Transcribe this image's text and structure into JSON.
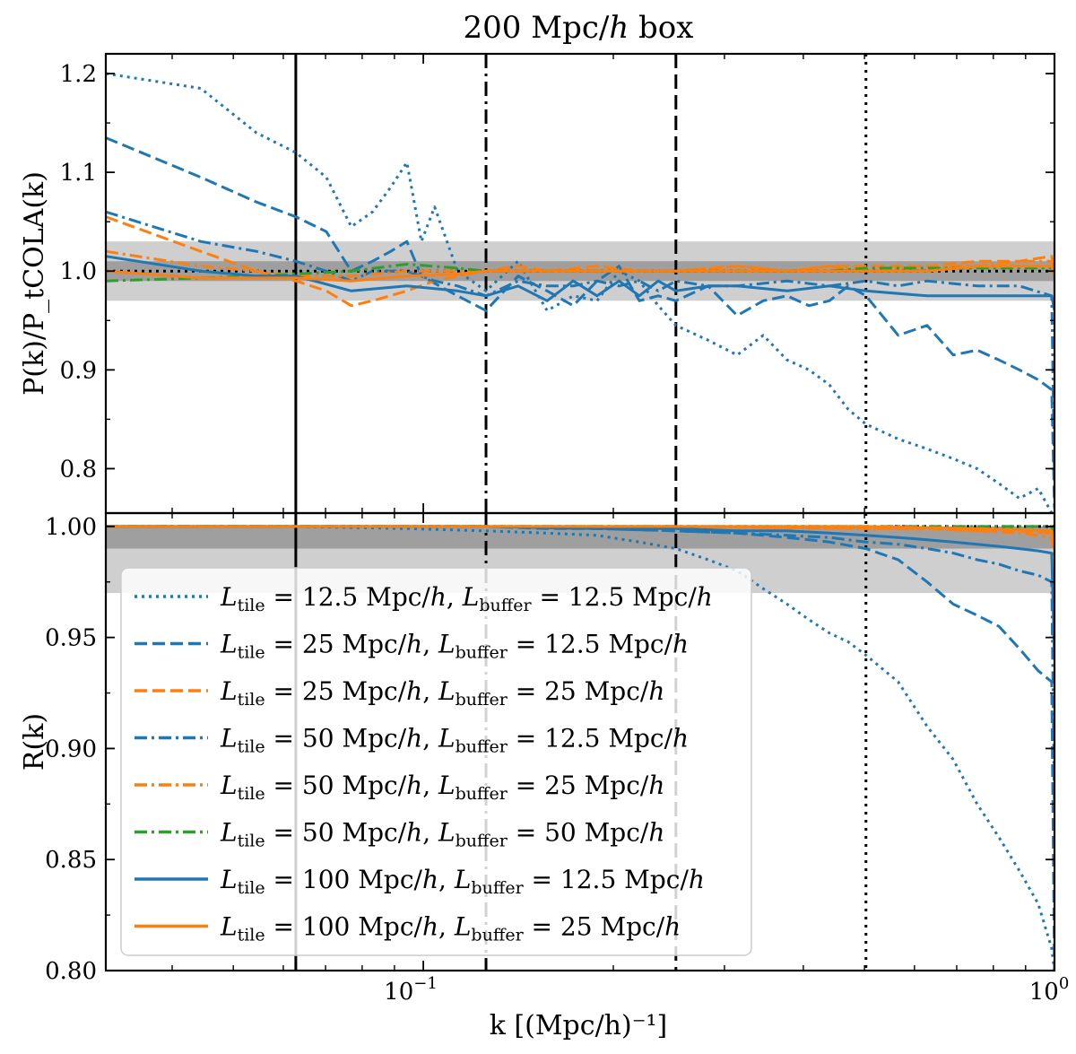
{
  "figure": {
    "title": "200 Mpc/h box",
    "xlabel": "k [(Mpc/h)⁻¹]",
    "top_ylabel": "P(k)/P_tCOLA(k)",
    "bottom_ylabel": "R(k)"
  },
  "chart_data": [
    {
      "type": "line",
      "panel": "top",
      "xscale": "log",
      "xlim": [
        0.0314,
        1.0
      ],
      "ylim": [
        0.755,
        1.22
      ],
      "yticks": [
        0.8,
        0.9,
        1.0,
        1.1,
        1.2
      ],
      "ytick_labels": [
        "0.8",
        "0.9",
        "1.0",
        "1.1",
        "1.2"
      ],
      "reference_line": 1.0,
      "bands": [
        {
          "lo": 0.97,
          "hi": 1.03
        },
        {
          "lo": 0.99,
          "hi": 1.01
        }
      ],
      "vlines": [
        {
          "x": 0.0628,
          "style": "solid"
        },
        {
          "x": 0.1257,
          "style": "dashdot"
        },
        {
          "x": 0.2513,
          "style": "dashed"
        },
        {
          "x": 0.5027,
          "style": "dotted"
        }
      ],
      "series": [
        {
          "key": "s1",
          "color": "#1f77b4",
          "style": "dotted",
          "x": [
            0.0314,
            0.0444,
            0.0544,
            0.0628,
            0.0702,
            0.0769,
            0.0831,
            0.0888,
            0.0942,
            0.0993,
            0.1042,
            0.1133,
            0.1257,
            0.1413,
            0.1571,
            0.1728,
            0.1885,
            0.2042,
            0.2199,
            0.2356,
            0.2513,
            0.2827,
            0.3142,
            0.3456,
            0.377,
            0.4084,
            0.4398,
            0.4712,
            0.5027,
            0.5655,
            0.6283,
            0.6912,
            0.754,
            0.8168,
            0.8796,
            0.9425,
            1.0
          ],
          "y": [
            1.2,
            1.185,
            1.14,
            1.12,
            1.095,
            1.045,
            1.06,
            1.085,
            1.11,
            1.03,
            1.065,
            1.0,
            0.98,
            1.01,
            0.96,
            0.975,
            0.97,
            1.0,
            0.99,
            0.965,
            0.945,
            0.93,
            0.915,
            0.935,
            0.91,
            0.9,
            0.885,
            0.86,
            0.845,
            0.83,
            0.82,
            0.81,
            0.8,
            0.785,
            0.77,
            0.78,
            0.75
          ]
        },
        {
          "key": "s2",
          "color": "#1f77b4",
          "style": "dashed",
          "x": [
            0.0314,
            0.0444,
            0.0544,
            0.0628,
            0.0702,
            0.0769,
            0.0831,
            0.0888,
            0.0942,
            0.0993,
            0.1133,
            0.1257,
            0.1413,
            0.1571,
            0.1728,
            0.1885,
            0.2042,
            0.2199,
            0.2356,
            0.2513,
            0.2827,
            0.3142,
            0.3456,
            0.377,
            0.4084,
            0.4398,
            0.4712,
            0.5027,
            0.5655,
            0.6283,
            0.6912,
            0.754,
            0.8168,
            0.8796,
            0.9425,
            0.99,
            1.0
          ],
          "y": [
            1.135,
            1.095,
            1.07,
            1.055,
            1.04,
            1.0,
            1.01,
            1.02,
            1.03,
            0.995,
            0.975,
            0.96,
            0.995,
            0.98,
            0.965,
            0.99,
            1.005,
            0.97,
            0.975,
            0.97,
            0.985,
            0.955,
            0.97,
            0.975,
            0.965,
            0.97,
            0.985,
            0.975,
            0.935,
            0.945,
            0.915,
            0.92,
            0.91,
            0.9,
            0.89,
            0.88,
            0.76
          ]
        },
        {
          "key": "s3",
          "color": "#ff7f0e",
          "style": "dashed",
          "x": [
            0.0314,
            0.0444,
            0.0544,
            0.0628,
            0.0702,
            0.0769,
            0.0831,
            0.0942,
            0.1042,
            0.1133,
            0.1257,
            0.1413,
            0.1571,
            0.1885,
            0.2199,
            0.2513,
            0.3142,
            0.377,
            0.4398,
            0.5027,
            0.6283,
            0.754,
            0.8796,
            0.99,
            1.0
          ],
          "y": [
            1.055,
            1.02,
            1.0,
            0.99,
            0.98,
            0.965,
            0.97,
            0.98,
            0.99,
            0.995,
            1.0,
            1.005,
            1.0,
            1.005,
            1.0,
            1.0,
            1.005,
            1.0,
            1.005,
            1.005,
            1.005,
            1.01,
            1.01,
            1.015,
            1.0
          ]
        },
        {
          "key": "s4",
          "color": "#1f77b4",
          "style": "dashdot",
          "x": [
            0.0314,
            0.0444,
            0.0544,
            0.0628,
            0.0702,
            0.0769,
            0.0831,
            0.0942,
            0.1042,
            0.1133,
            0.1257,
            0.1413,
            0.1571,
            0.1728,
            0.1885,
            0.2042,
            0.2199,
            0.2356,
            0.2513,
            0.2827,
            0.3142,
            0.377,
            0.4398,
            0.5027,
            0.5655,
            0.6283,
            0.754,
            0.8796,
            0.99,
            1.0
          ],
          "y": [
            1.06,
            1.03,
            1.02,
            1.01,
            1.0,
            0.99,
            1.0,
            1.0,
            0.99,
            0.985,
            0.975,
            0.99,
            0.985,
            0.985,
            0.99,
            0.985,
            0.99,
            0.98,
            0.99,
            0.985,
            0.985,
            0.99,
            0.985,
            0.99,
            0.985,
            0.99,
            0.985,
            0.985,
            0.975,
            0.79
          ]
        },
        {
          "key": "s5",
          "color": "#ff7f0e",
          "style": "dashdot",
          "x": [
            0.0314,
            0.0444,
            0.0544,
            0.0628,
            0.0769,
            0.0942,
            0.1133,
            0.1257,
            0.1571,
            0.1885,
            0.2513,
            0.3142,
            0.377,
            0.4398,
            0.5027,
            0.6283,
            0.754,
            0.8796,
            0.99,
            1.0
          ],
          "y": [
            1.02,
            1.005,
            1.0,
            0.995,
            0.995,
            1.0,
            1.0,
            1.0,
            1.0,
            1.0,
            1.0,
            1.005,
            1.0,
            1.005,
            1.0,
            1.005,
            1.005,
            1.01,
            1.01,
            1.0
          ]
        },
        {
          "key": "s6",
          "color": "#2ca02c",
          "style": "dashdot",
          "x": [
            0.0314,
            0.0444,
            0.0544,
            0.0628,
            0.0769,
            0.0942,
            0.1133,
            0.1257,
            0.1571,
            0.1885,
            0.2513,
            0.3142,
            0.377,
            0.4398,
            0.5027,
            0.6283,
            0.754,
            0.8796,
            0.99,
            1.0
          ],
          "y": [
            0.99,
            0.993,
            0.995,
            0.997,
            1.0,
            1.007,
            1.003,
            1.0,
            1.0,
            1.0,
            1.0,
            1.0,
            1.0,
            1.0,
            1.003,
            1.003,
            1.003,
            1.003,
            1.003,
            0.998
          ]
        },
        {
          "key": "s7",
          "color": "#1f77b4",
          "style": "solid",
          "x": [
            0.0314,
            0.0444,
            0.0544,
            0.0628,
            0.0769,
            0.0942,
            0.1133,
            0.1257,
            0.1413,
            0.1571,
            0.1728,
            0.1885,
            0.2042,
            0.2199,
            0.2356,
            0.2513,
            0.2827,
            0.3142,
            0.377,
            0.4398,
            0.5027,
            0.6283,
            0.754,
            0.8796,
            0.99,
            1.0
          ],
          "y": [
            1.015,
            1.0,
            0.995,
            0.995,
            0.98,
            0.985,
            0.98,
            0.975,
            0.985,
            0.97,
            0.99,
            0.975,
            0.99,
            0.975,
            0.99,
            0.98,
            0.985,
            0.985,
            0.98,
            0.985,
            0.98,
            0.975,
            0.975,
            0.975,
            0.975,
            0.96
          ]
        },
        {
          "key": "s8",
          "color": "#ff7f0e",
          "style": "solid",
          "x": [
            0.0314,
            0.0444,
            0.0544,
            0.0628,
            0.0769,
            0.0942,
            0.1133,
            0.1257,
            0.1571,
            0.1885,
            0.2513,
            0.3142,
            0.377,
            0.4398,
            0.5027,
            0.6283,
            0.754,
            0.8796,
            0.99,
            1.0
          ],
          "y": [
            1.0,
            0.993,
            0.993,
            0.993,
            0.99,
            0.995,
            0.997,
            1.0,
            1.0,
            1.0,
            1.0,
            1.0,
            1.0,
            1.0,
            1.0,
            1.0,
            1.005,
            1.005,
            1.005,
            0.995
          ]
        }
      ]
    },
    {
      "type": "line",
      "panel": "bottom",
      "xscale": "log",
      "xlim": [
        0.0314,
        1.0
      ],
      "ylim": [
        0.8,
        1.006
      ],
      "yticks": [
        0.8,
        0.85,
        0.9,
        0.95,
        1.0
      ],
      "ytick_labels": [
        "0.80",
        "0.85",
        "0.90",
        "0.95",
        "1.00"
      ],
      "xticks": [
        0.1,
        1.0
      ],
      "reference_line": 1.0,
      "bands": [
        {
          "lo": 0.97,
          "hi": 1.0
        },
        {
          "lo": 0.99,
          "hi": 1.0
        }
      ],
      "vlines": [
        {
          "x": 0.0628,
          "style": "solid"
        },
        {
          "x": 0.1257,
          "style": "dashdot"
        },
        {
          "x": 0.2513,
          "style": "dashed"
        },
        {
          "x": 0.5027,
          "style": "dotted"
        }
      ],
      "series": [
        {
          "key": "s1",
          "color": "#1f77b4",
          "style": "dotted",
          "x": [
            0.0314,
            0.0628,
            0.0942,
            0.1257,
            0.1571,
            0.1885,
            0.2199,
            0.2513,
            0.2827,
            0.3142,
            0.3456,
            0.377,
            0.4084,
            0.4398,
            0.4712,
            0.5027,
            0.5655,
            0.6283,
            0.6912,
            0.754,
            0.8168,
            0.8796,
            0.9425,
            0.99,
            1.0
          ],
          "y": [
            1.0,
            1.0,
            0.999,
            0.998,
            0.997,
            0.996,
            0.993,
            0.99,
            0.985,
            0.98,
            0.972,
            0.965,
            0.958,
            0.952,
            0.948,
            0.942,
            0.93,
            0.91,
            0.895,
            0.875,
            0.86,
            0.845,
            0.83,
            0.81,
            0.8
          ]
        },
        {
          "key": "s2",
          "color": "#1f77b4",
          "style": "dashed",
          "x": [
            0.0314,
            0.0628,
            0.0942,
            0.1257,
            0.1571,
            0.1885,
            0.2513,
            0.3142,
            0.377,
            0.4398,
            0.5027,
            0.5655,
            0.6283,
            0.6912,
            0.754,
            0.8168,
            0.8796,
            0.9425,
            0.99,
            1.0
          ],
          "y": [
            1.0,
            1.0,
            1.0,
            1.0,
            0.999,
            0.999,
            0.998,
            0.997,
            0.995,
            0.993,
            0.99,
            0.985,
            0.975,
            0.965,
            0.96,
            0.955,
            0.945,
            0.935,
            0.93,
            0.8
          ]
        },
        {
          "key": "s3",
          "color": "#ff7f0e",
          "style": "dashed",
          "x": [
            0.0314,
            0.1257,
            0.2513,
            0.5027,
            0.6283,
            0.754,
            0.8796,
            0.99,
            1.0
          ],
          "y": [
            1.0,
            1.0,
            1.0,
            0.999,
            0.999,
            0.998,
            0.998,
            0.997,
            0.99
          ]
        },
        {
          "key": "s4",
          "color": "#1f77b4",
          "style": "dashdot",
          "x": [
            0.0314,
            0.0628,
            0.1257,
            0.1885,
            0.2513,
            0.3142,
            0.377,
            0.4398,
            0.5027,
            0.5655,
            0.6283,
            0.6912,
            0.754,
            0.8168,
            0.8796,
            0.9425,
            0.99,
            1.0
          ],
          "y": [
            1.0,
            1.0,
            1.0,
            0.999,
            0.998,
            0.997,
            0.996,
            0.995,
            0.993,
            0.992,
            0.99,
            0.988,
            0.985,
            0.983,
            0.98,
            0.978,
            0.975,
            0.87
          ]
        },
        {
          "key": "s5",
          "color": "#ff7f0e",
          "style": "dashdot",
          "x": [
            0.0314,
            0.1257,
            0.2513,
            0.5027,
            0.6283,
            0.754,
            0.8796,
            0.99,
            1.0
          ],
          "y": [
            1.0,
            1.0,
            1.0,
            0.999,
            0.999,
            0.998,
            0.997,
            0.995,
            0.985
          ]
        },
        {
          "key": "s6",
          "color": "#2ca02c",
          "style": "dashdot",
          "x": [
            0.0314,
            0.1257,
            0.2513,
            0.5027,
            0.754,
            0.99,
            1.0
          ],
          "y": [
            1.0,
            1.0,
            1.0,
            1.0,
            1.0,
            1.0,
            0.995
          ]
        },
        {
          "key": "s7",
          "color": "#1f77b4",
          "style": "solid",
          "x": [
            0.0314,
            0.0628,
            0.1257,
            0.1885,
            0.2513,
            0.3142,
            0.377,
            0.4398,
            0.5027,
            0.5655,
            0.6283,
            0.6912,
            0.754,
            0.8168,
            0.8796,
            0.9425,
            0.99,
            1.0
          ],
          "y": [
            1.0,
            1.0,
            1.0,
            0.999,
            0.999,
            0.998,
            0.998,
            0.997,
            0.996,
            0.995,
            0.994,
            0.993,
            0.992,
            0.991,
            0.99,
            0.989,
            0.988,
            0.94
          ]
        },
        {
          "key": "s8",
          "color": "#ff7f0e",
          "style": "solid",
          "x": [
            0.0314,
            0.1257,
            0.2513,
            0.5027,
            0.754,
            0.99,
            1.0
          ],
          "y": [
            1.0,
            1.0,
            1.0,
            1.0,
            0.999,
            0.998,
            0.99
          ]
        }
      ]
    }
  ],
  "legend": {
    "placement": "center-left, bottom panel",
    "entries": [
      {
        "key": "s1",
        "color": "#1f77b4",
        "style": "dotted",
        "tile_sub": "tile",
        "tile_val": "12.5",
        "buf_sub": "buffer",
        "buf_val": "12.5"
      },
      {
        "key": "s2",
        "color": "#1f77b4",
        "style": "dashed",
        "tile_sub": "tile",
        "tile_val": "25",
        "buf_sub": "buffer",
        "buf_val": "12.5"
      },
      {
        "key": "s3",
        "color": "#ff7f0e",
        "style": "dashed",
        "tile_sub": "tile",
        "tile_val": "25",
        "buf_sub": "buffer",
        "buf_val": "25"
      },
      {
        "key": "s4",
        "color": "#1f77b4",
        "style": "dashdot",
        "tile_sub": "tile",
        "tile_val": "50",
        "buf_sub": "buffer",
        "buf_val": "12.5"
      },
      {
        "key": "s5",
        "color": "#ff7f0e",
        "style": "dashdot",
        "tile_sub": "tile",
        "tile_val": "50",
        "buf_sub": "buffer",
        "buf_val": "25"
      },
      {
        "key": "s6",
        "color": "#2ca02c",
        "style": "dashdot",
        "tile_sub": "tile",
        "tile_val": "50",
        "buf_sub": "buffer",
        "buf_val": "50"
      },
      {
        "key": "s7",
        "color": "#1f77b4",
        "style": "solid",
        "tile_sub": "tile",
        "tile_val": "100",
        "buf_sub": "buffer",
        "buf_val": "12.5"
      },
      {
        "key": "s8",
        "color": "#ff7f0e",
        "style": "solid",
        "tile_sub": "tile",
        "tile_val": "100",
        "buf_sub": "buffer",
        "buf_val": "25"
      }
    ]
  },
  "x_tick_labels": {
    "base": "10",
    "exp_first": "−1",
    "exp_second": "0"
  },
  "legend_text": {
    "L": "L",
    "eq": " = ",
    "unit": " Mpc/",
    "h": "h",
    "comma": ", "
  }
}
